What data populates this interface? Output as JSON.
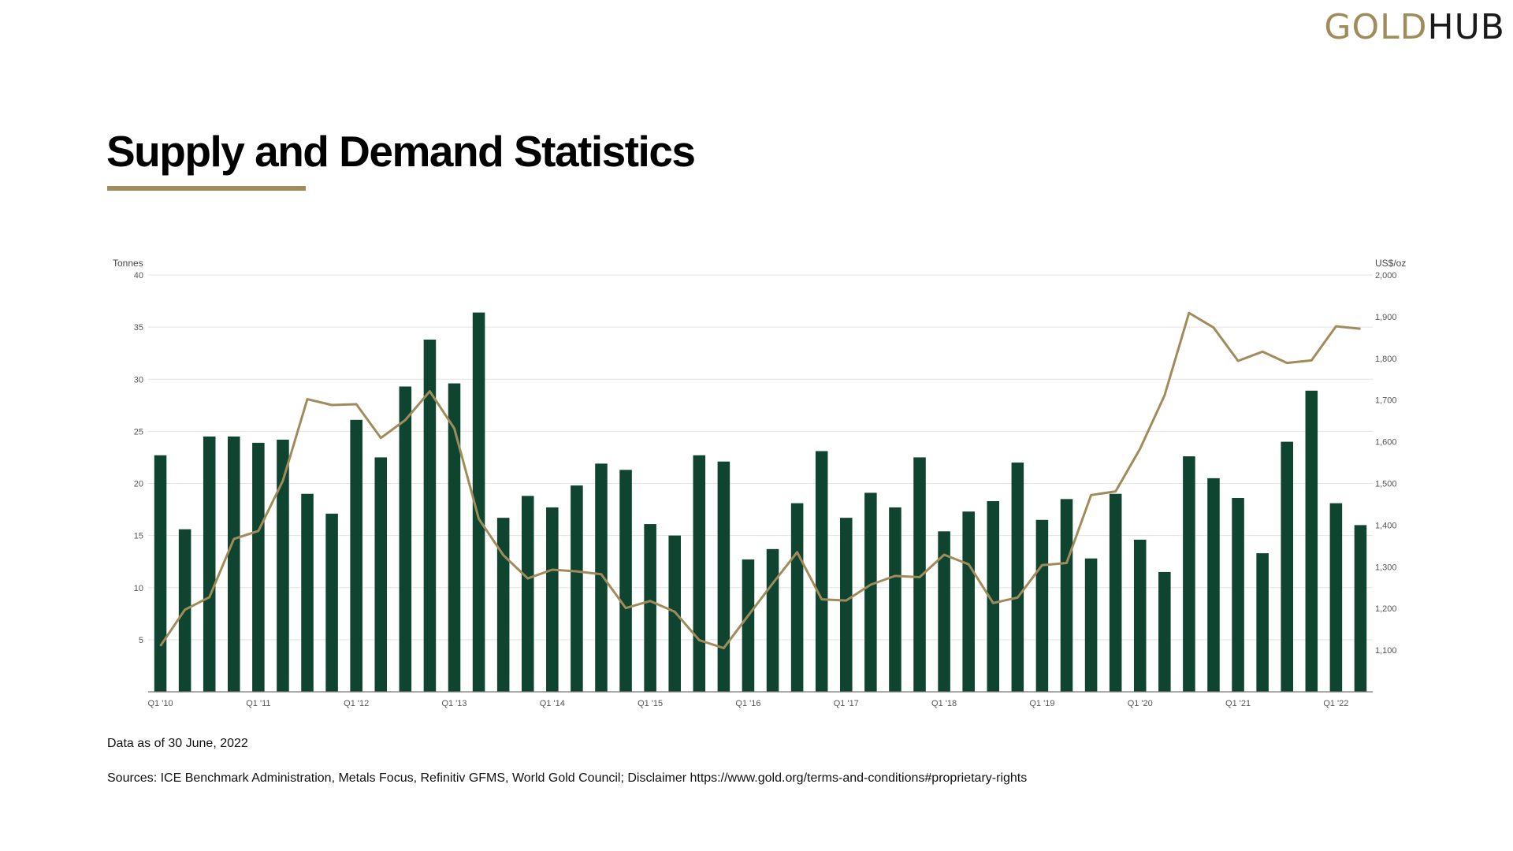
{
  "brand": {
    "logo_part1": "GOLD",
    "logo_part2": "HUB",
    "colors": {
      "gold": "#a08c5b",
      "dark_green": "#0f4430",
      "text": "#000000"
    }
  },
  "page": {
    "title": "Supply and Demand Statistics"
  },
  "footer": {
    "data_as_of": "Data as of 30 June, 2022",
    "sources": "Sources: ICE Benchmark Administration, Metals Focus, Refinitiv GFMS, World Gold Council; Disclaimer https://www.gold.org/terms-and-conditions#proprietary-rights"
  },
  "chart_data": {
    "type": "bar",
    "combo": "bar-line",
    "title": "",
    "left_axis": {
      "unit": "Tonnes",
      "min": 0,
      "max": 40,
      "ticks": [
        5,
        10,
        15,
        20,
        25,
        30,
        35,
        40
      ],
      "tick_labels": [
        "5",
        "10",
        "15",
        "20",
        "25",
        "30",
        "35",
        "40"
      ]
    },
    "right_axis": {
      "unit": "US$/oz",
      "min": 1000,
      "max": 2000,
      "ticks": [
        1100,
        1200,
        1300,
        1400,
        1500,
        1600,
        1700,
        1800,
        1900,
        2000
      ],
      "tick_labels": [
        "1,100",
        "1,200",
        "1,300",
        "1,400",
        "1,500",
        "1,600",
        "1,700",
        "1,800",
        "1,900",
        "2,000"
      ]
    },
    "categories": [
      "Q1 '10",
      "Q2 '10",
      "Q3 '10",
      "Q4 '10",
      "Q1 '11",
      "Q2 '11",
      "Q3 '11",
      "Q4 '11",
      "Q1 '12",
      "Q2 '12",
      "Q3 '12",
      "Q4 '12",
      "Q1 '13",
      "Q2 '13",
      "Q3 '13",
      "Q4 '13",
      "Q1 '14",
      "Q2 '14",
      "Q3 '14",
      "Q4 '14",
      "Q1 '15",
      "Q2 '15",
      "Q3 '15",
      "Q4 '15",
      "Q1 '16",
      "Q2 '16",
      "Q3 '16",
      "Q4 '16",
      "Q1 '17",
      "Q2 '17",
      "Q3 '17",
      "Q4 '17",
      "Q1 '18",
      "Q2 '18",
      "Q3 '18",
      "Q4 '18",
      "Q1 '19",
      "Q2 '19",
      "Q3 '19",
      "Q4 '19",
      "Q1 '20",
      "Q2 '20",
      "Q3 '20",
      "Q4 '20",
      "Q1 '21",
      "Q2 '21",
      "Q3 '21",
      "Q4 '21",
      "Q1 '22",
      "Q2 '22"
    ],
    "x_tick_labels": [
      "Q1 '10",
      "Q1 '11",
      "Q1 '12",
      "Q1 '13",
      "Q1 '14",
      "Q1 '15",
      "Q1 '16",
      "Q1 '17",
      "Q1 '18",
      "Q1 '19",
      "Q1 '20",
      "Q1 '21",
      "Q1 '22"
    ],
    "series": [
      {
        "type": "bar",
        "axis": "left",
        "color": "#0f4430",
        "values": [
          22.7,
          15.6,
          24.5,
          24.5,
          23.9,
          24.2,
          19.0,
          17.1,
          26.1,
          22.5,
          29.3,
          33.8,
          29.6,
          36.4,
          16.7,
          18.8,
          17.7,
          19.8,
          21.9,
          21.3,
          16.1,
          15.0,
          22.7,
          22.1,
          12.7,
          13.7,
          18.1,
          23.1,
          16.7,
          19.1,
          17.7,
          22.5,
          15.4,
          17.3,
          18.3,
          22.0,
          16.5,
          18.5,
          12.8,
          19.0,
          14.6,
          11.5,
          22.6,
          20.5,
          18.6,
          13.3,
          24.0,
          28.9,
          18.1,
          16.0
        ]
      },
      {
        "type": "line",
        "axis": "right",
        "color": "#a08c5b",
        "values": [
          1110,
          1197,
          1227,
          1367,
          1386,
          1506,
          1702,
          1688,
          1690,
          1609,
          1652,
          1721,
          1632,
          1415,
          1328,
          1272,
          1293,
          1289,
          1282,
          1201,
          1218,
          1192,
          1124,
          1105,
          1183,
          1260,
          1335,
          1222,
          1219,
          1257,
          1278,
          1275,
          1329,
          1306,
          1213,
          1226,
          1304,
          1309,
          1472,
          1481,
          1583,
          1711,
          1909,
          1874,
          1794,
          1816,
          1789,
          1795,
          1877,
          1871
        ]
      }
    ],
    "grid": true,
    "legend": "none"
  }
}
